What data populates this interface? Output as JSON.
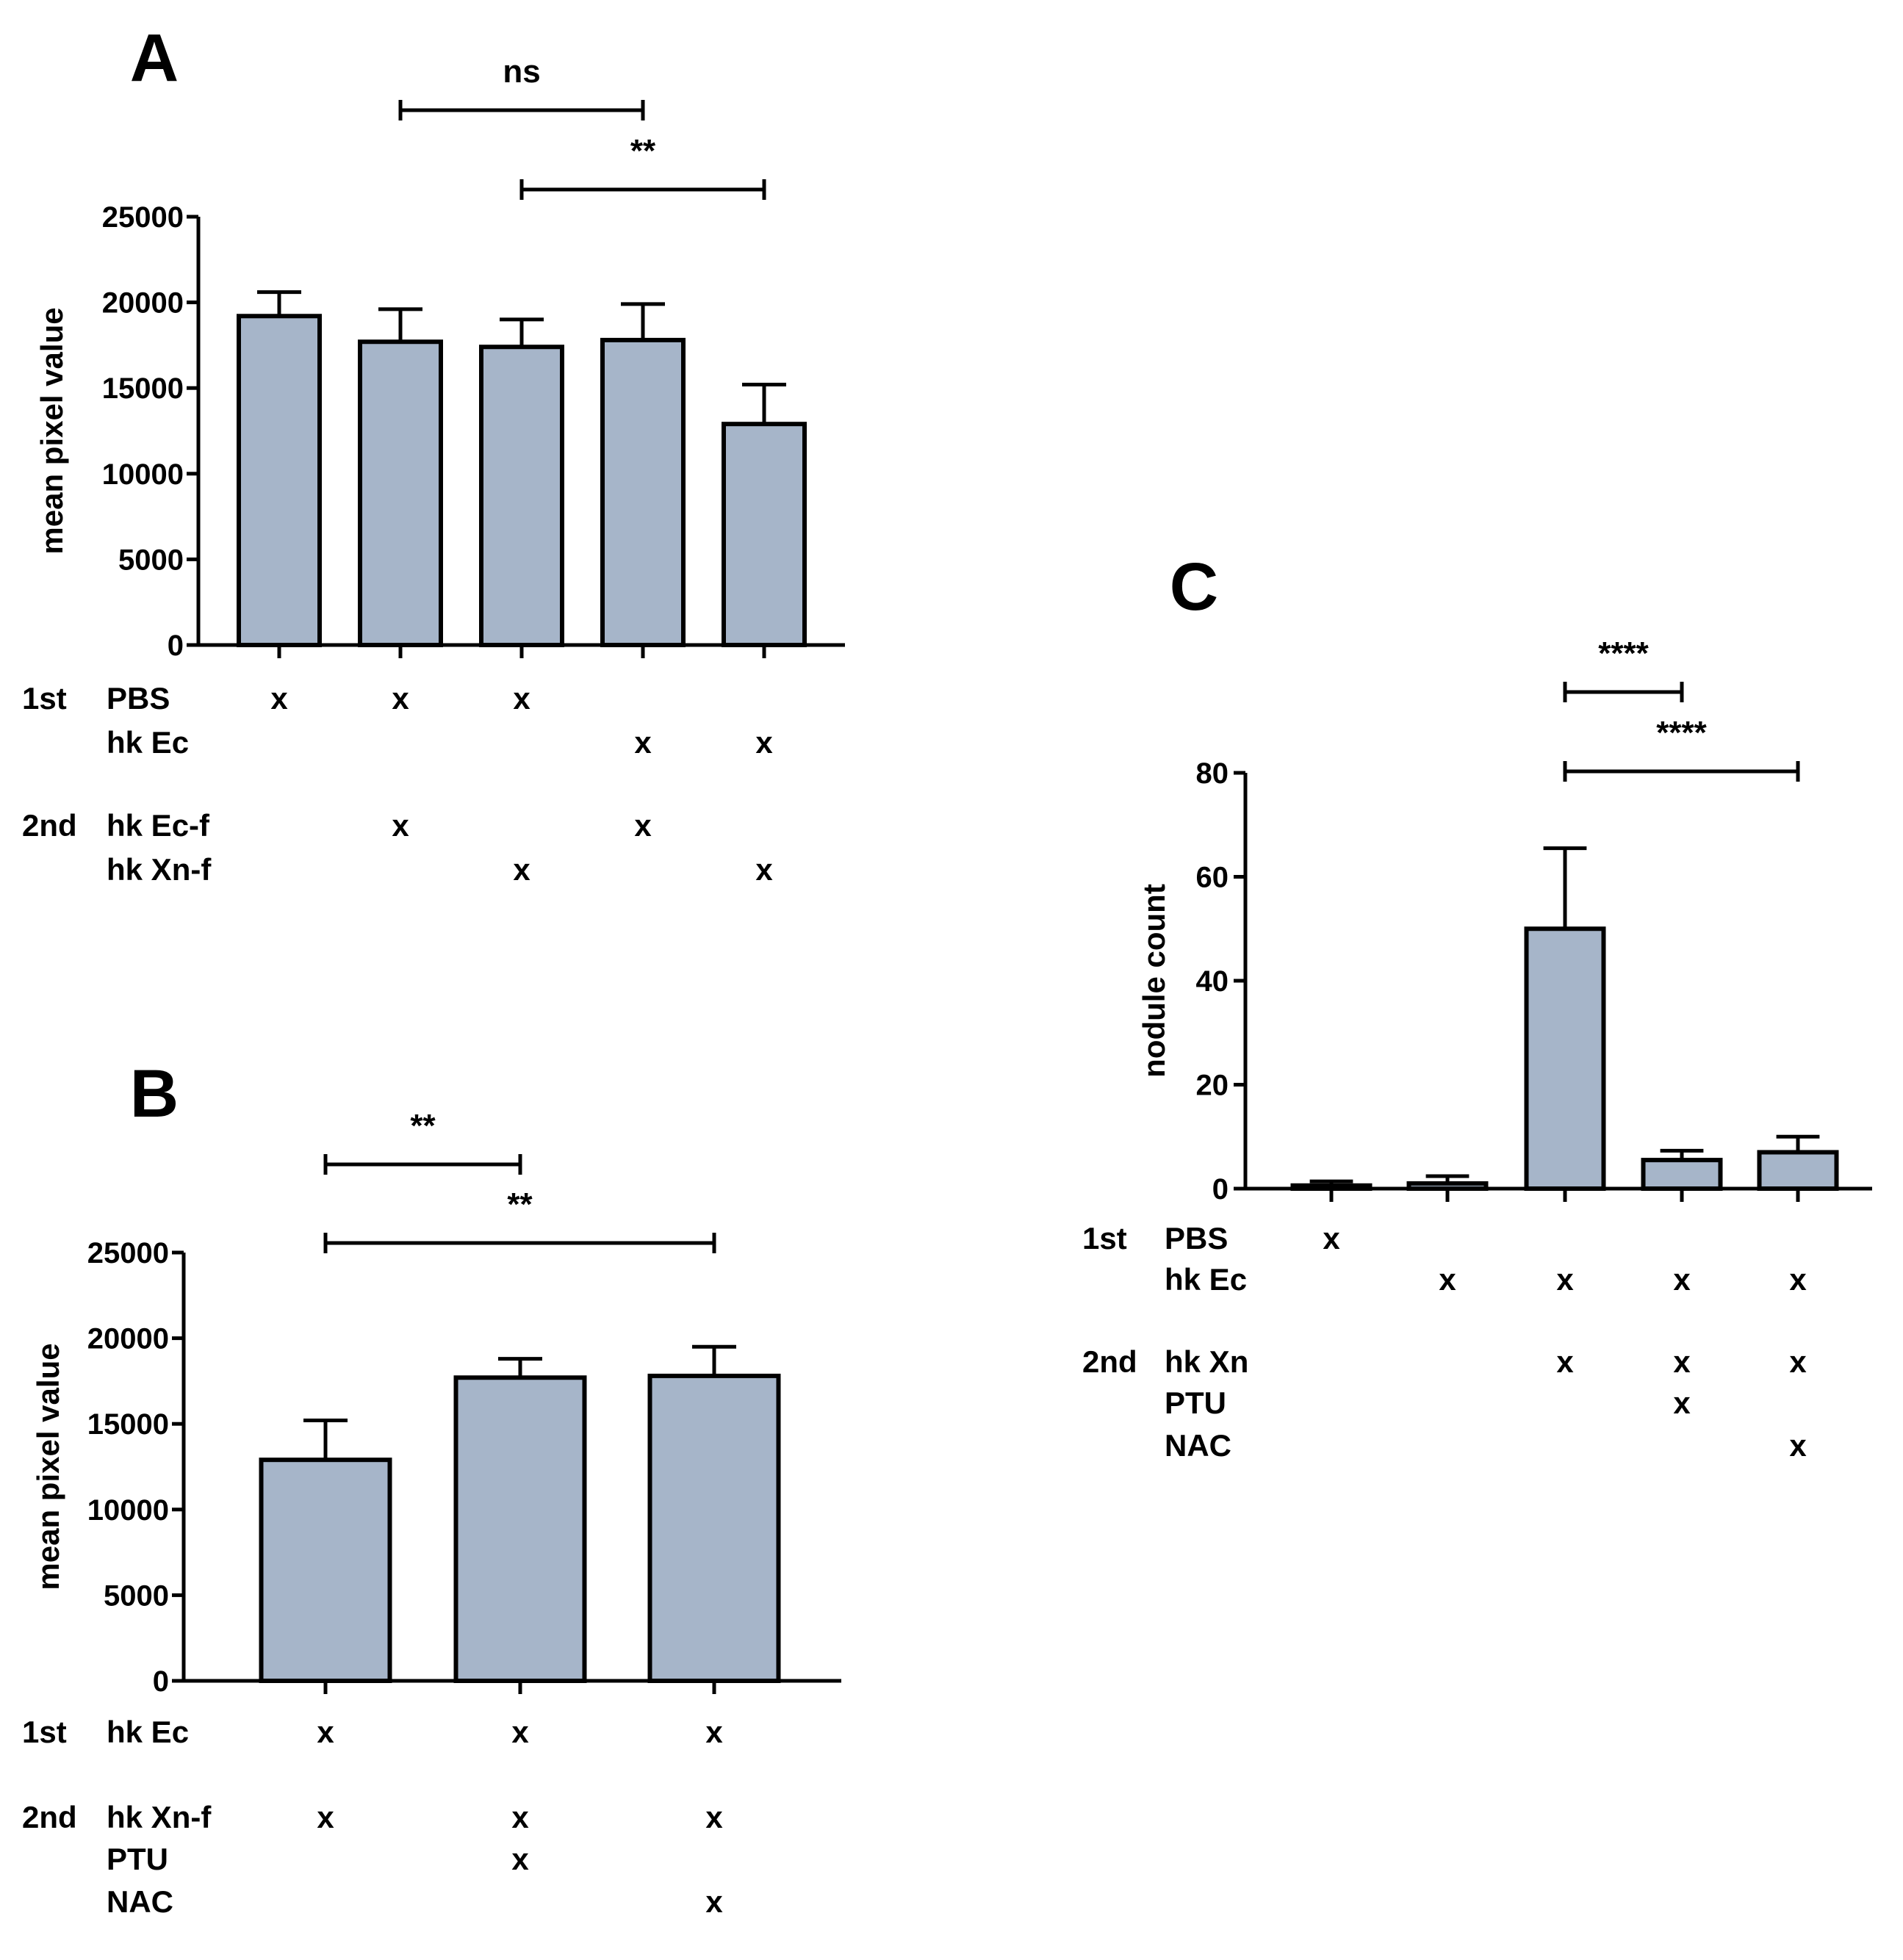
{
  "colors": {
    "bar_fill": "#a6b5c9",
    "ink": "#000000",
    "background": "#ffffff"
  },
  "chart_data": [
    {
      "panel": "A",
      "type": "bar",
      "ylabel": "mean pixel value",
      "ylim": [
        0,
        25000
      ],
      "yticks": [
        0,
        5000,
        10000,
        15000,
        20000,
        25000
      ],
      "values": [
        19200,
        17700,
        17400,
        17800,
        12900
      ],
      "errors": [
        1400,
        1900,
        1600,
        2100,
        2300
      ],
      "significance": [
        {
          "from": 1,
          "to": 3,
          "label": "ns"
        },
        {
          "from": 2,
          "to": 4,
          "label": "**"
        }
      ],
      "conditions": [
        {
          "group": "1st",
          "label": "PBS",
          "marks": [
            true,
            true,
            true,
            false,
            false
          ]
        },
        {
          "group": "",
          "label": "hk Ec",
          "marks": [
            false,
            false,
            false,
            true,
            true
          ]
        },
        {
          "group": "2nd",
          "label": "hk Ec-f",
          "marks": [
            false,
            true,
            false,
            true,
            false
          ]
        },
        {
          "group": "",
          "label": "hk Xn-f",
          "marks": [
            false,
            false,
            true,
            false,
            true
          ]
        }
      ],
      "mark_symbol": "x"
    },
    {
      "panel": "B",
      "type": "bar",
      "ylabel": "mean pixel value",
      "ylim": [
        0,
        25000
      ],
      "yticks": [
        0,
        5000,
        10000,
        15000,
        20000,
        25000
      ],
      "values": [
        12900,
        17700,
        17800
      ],
      "errors": [
        2300,
        1100,
        1700
      ],
      "significance": [
        {
          "from": 0,
          "to": 1,
          "label": "**"
        },
        {
          "from": 0,
          "to": 2,
          "label": "**"
        }
      ],
      "conditions": [
        {
          "group": "1st",
          "label": "hk Ec",
          "marks": [
            true,
            true,
            true
          ]
        },
        {
          "group": "2nd",
          "label": "hk Xn-f",
          "marks": [
            true,
            true,
            true
          ]
        },
        {
          "group": "",
          "label": "PTU",
          "marks": [
            false,
            true,
            false
          ]
        },
        {
          "group": "",
          "label": "NAC",
          "marks": [
            false,
            false,
            true
          ]
        }
      ],
      "mark_symbol": "x"
    },
    {
      "panel": "C",
      "type": "bar",
      "ylabel": "nodule count",
      "ylim": [
        0,
        80
      ],
      "yticks": [
        0,
        20,
        40,
        60,
        80
      ],
      "values": [
        0.6,
        1.0,
        50.0,
        5.5,
        7.0
      ],
      "errors": [
        0.8,
        1.4,
        15.5,
        1.8,
        3.0
      ],
      "significance": [
        {
          "from": 2,
          "to": 3,
          "label": "****"
        },
        {
          "from": 2,
          "to": 4,
          "label": "****"
        }
      ],
      "conditions": [
        {
          "group": "1st",
          "label": "PBS",
          "marks": [
            true,
            false,
            false,
            false,
            false
          ]
        },
        {
          "group": "",
          "label": "hk Ec",
          "marks": [
            false,
            true,
            true,
            true,
            true
          ]
        },
        {
          "group": "2nd",
          "label": "hk Xn",
          "marks": [
            false,
            false,
            true,
            true,
            true
          ]
        },
        {
          "group": "",
          "label": "PTU",
          "marks": [
            false,
            false,
            false,
            true,
            false
          ]
        },
        {
          "group": "",
          "label": "NAC",
          "marks": [
            false,
            false,
            false,
            false,
            true
          ]
        }
      ],
      "mark_symbol": "x"
    }
  ]
}
